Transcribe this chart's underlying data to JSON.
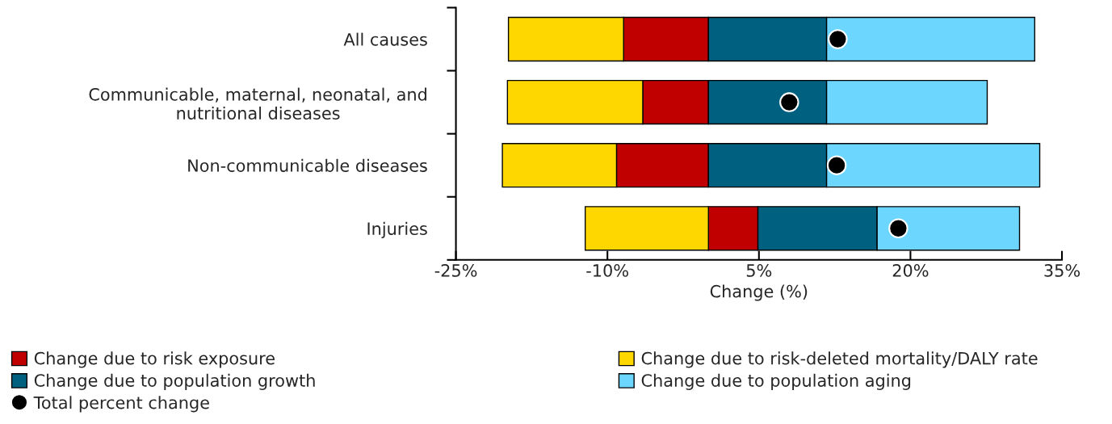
{
  "chart_data": {
    "type": "bar",
    "orientation": "horizontal",
    "stacked": true,
    "categories": [
      "All causes",
      "Communicable, maternal, neonatal, and\nnutritional diseases",
      "Non-communicable diseases",
      "Injuries"
    ],
    "series": [
      {
        "name": "Change due to risk exposure",
        "color": "#c00000",
        "values": [
          -8.4,
          -6.5,
          -9.1,
          4.9
        ]
      },
      {
        "name": "Change due to risk-deleted mortality/DALY rate",
        "color": "#ffd700",
        "values": [
          -11.4,
          -13.4,
          -11.3,
          -12.2
        ]
      },
      {
        "name": "Change due to population growth",
        "color": "#006080",
        "values": [
          11.7,
          11.7,
          11.7,
          11.8
        ]
      },
      {
        "name": "Change due to population aging",
        "color": "#6dd6ff",
        "values": [
          20.6,
          15.9,
          21.1,
          14.1
        ]
      },
      {
        "name": "Total percent change",
        "type": "scatter",
        "color": "#000000",
        "marker": "circle",
        "values": [
          12.8,
          8.0,
          12.7,
          18.8
        ]
      }
    ],
    "xlabel": "Change (%)",
    "xlim": [
      -25,
      35
    ],
    "xticks": [
      {
        "value": -25,
        "label": "-25%"
      },
      {
        "value": -10,
        "label": "-10%"
      },
      {
        "value": 5,
        "label": "5%"
      },
      {
        "value": 20,
        "label": "20%"
      },
      {
        "value": 35,
        "label": "35%"
      }
    ],
    "grid": false,
    "legend": "bottom"
  }
}
